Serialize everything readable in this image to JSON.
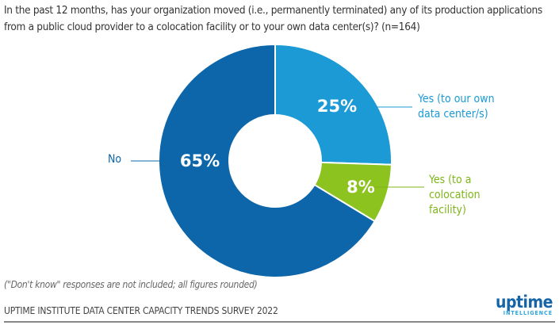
{
  "chart_data": {
    "type": "pie",
    "donut": true,
    "title": "In the past 12 months, has your organization moved (i.e., permanently terminated) any of its production applications from a public cloud provider to a colocation facility or to your own data center(s)? (n=164)",
    "categories": [
      "Yes (to our own data center/s)",
      "Yes (to a colocation facility)",
      "No"
    ],
    "values": [
      25,
      8,
      65
    ],
    "value_labels": [
      "25%",
      "8%",
      "65%"
    ],
    "colors": [
      "#1b9ad6",
      "#8cc31f",
      "#0c66a9"
    ],
    "label_colors": [
      "#1b9ad6",
      "#7fb51a",
      "#0c66a9"
    ]
  },
  "labels": {
    "yes_own": [
      "Yes (to our own",
      "data center/s)"
    ],
    "yes_colo": [
      "Yes (to a",
      "colocation",
      "facility)"
    ],
    "no": "No"
  },
  "note": "(\"Don't know\" responses are not included; all figures rounded)",
  "source": "UPTIME INSTITUTE DATA CENTER CAPACITY TRENDS SURVEY 2022",
  "logo": {
    "main": "uptime",
    "sub": "INTELLIGENCE"
  }
}
